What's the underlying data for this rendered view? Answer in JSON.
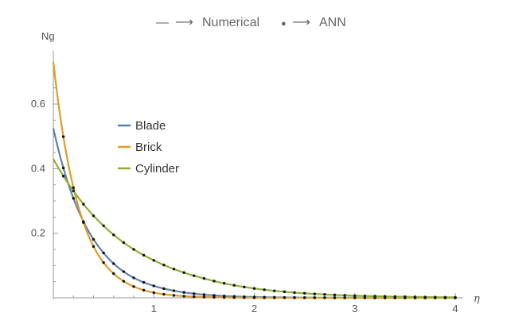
{
  "header": {
    "item1_label": "Numerical",
    "item2_label": "ANN",
    "arrow": "⟶",
    "line_glyph": "—",
    "dot_glyph": "●"
  },
  "chart_data": {
    "type": "line",
    "xlabel": "η",
    "ylabel": "Ng",
    "xlim": [
      0,
      4.05
    ],
    "ylim": [
      0,
      0.75
    ],
    "x_ticks": [
      1,
      2,
      3,
      4
    ],
    "x_tick_labels": [
      "1",
      "2",
      "3",
      "4"
    ],
    "y_ticks": [
      0.2,
      0.4,
      0.6
    ],
    "y_tick_labels": [
      "0.2",
      "0.4",
      "0.6"
    ],
    "grid": false,
    "legend_placement": "upper-left-inside",
    "series": [
      {
        "name": "Blade",
        "color": "#5E81B5",
        "x": [
          0,
          0.1,
          0.2,
          0.3,
          0.4,
          0.5,
          0.6,
          0.8,
          1.0,
          1.2,
          1.5,
          2.0,
          2.5,
          3.0,
          3.5,
          4.0
        ],
        "y": [
          0.525,
          0.402,
          0.308,
          0.236,
          0.181,
          0.139,
          0.106,
          0.062,
          0.037,
          0.022,
          0.0098,
          0.0025,
          0.0007,
          0.0002,
          0.0,
          0.0
        ]
      },
      {
        "name": "Brick",
        "color": "#E19C24",
        "x": [
          0,
          0.1,
          0.2,
          0.3,
          0.4,
          0.5,
          0.6,
          0.8,
          1.0,
          1.2,
          1.5,
          2.0,
          2.5,
          3.0,
          3.5,
          4.0
        ],
        "y": [
          0.73,
          0.499,
          0.341,
          0.233,
          0.159,
          0.109,
          0.075,
          0.035,
          0.016,
          0.0076,
          0.0024,
          0.0004,
          0.0001,
          0.0,
          0.0,
          0.0
        ]
      },
      {
        "name": "Cylinder",
        "color": "#8FB032",
        "x": [
          0,
          0.1,
          0.2,
          0.3,
          0.4,
          0.5,
          0.6,
          0.8,
          1.0,
          1.2,
          1.5,
          2.0,
          2.5,
          3.0,
          3.5,
          4.0
        ],
        "y": [
          0.43,
          0.377,
          0.331,
          0.29,
          0.254,
          0.223,
          0.195,
          0.15,
          0.116,
          0.089,
          0.06,
          0.029,
          0.014,
          0.0067,
          0.0032,
          0.0015
        ]
      }
    ]
  }
}
